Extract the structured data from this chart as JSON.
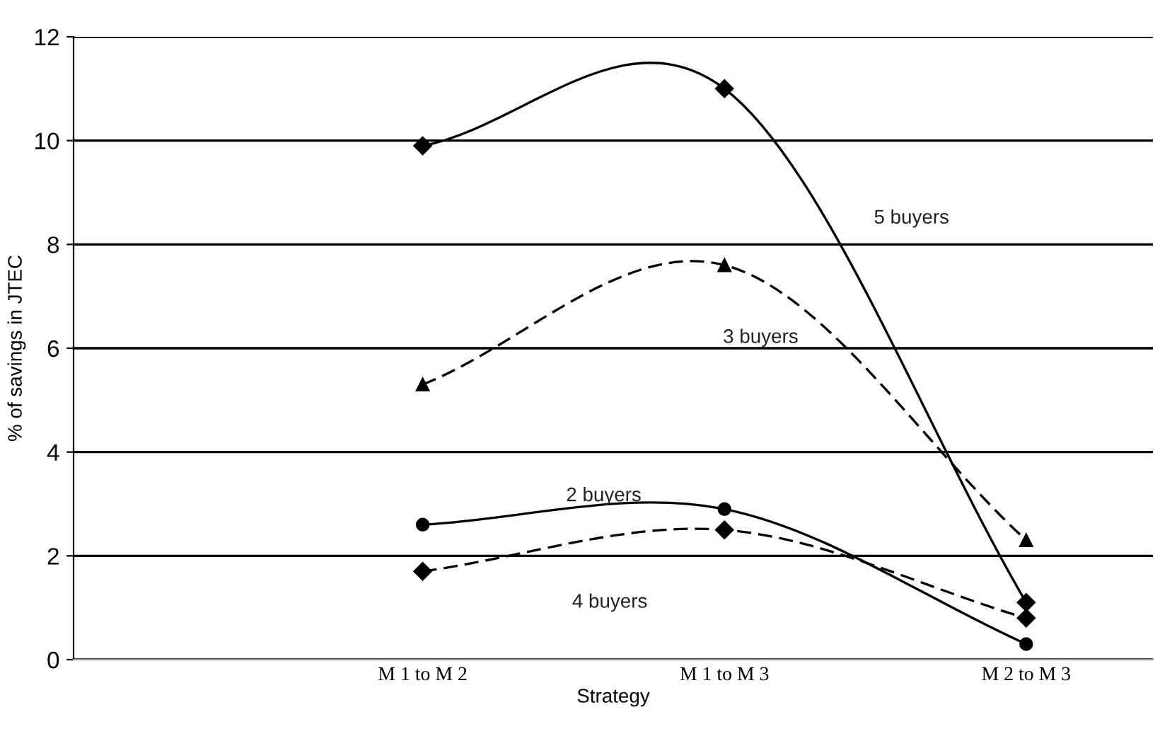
{
  "chart_data": {
    "type": "line",
    "xlabel": "Strategy",
    "ylabel": "% of savings in JTEC",
    "categories": [
      "M 1 to M 2",
      "M 1 to M 3",
      "M 2 to M 3"
    ],
    "series": [
      {
        "name": "5 buyers",
        "color": "#000000",
        "values": [
          9.9,
          11.0,
          1.1
        ],
        "marker": "diamond",
        "line_style": "solid"
      },
      {
        "name": "3 buyers",
        "color": "#000000",
        "values": [
          5.3,
          7.6,
          2.3
        ],
        "marker": "triangle",
        "line_style": "dashed"
      },
      {
        "name": "2 buyers",
        "color": "#000000",
        "values": [
          2.6,
          2.9,
          0.3
        ],
        "marker": "circle",
        "line_style": "solid"
      },
      {
        "name": "4 buyers",
        "color": "#000000",
        "values": [
          1.7,
          2.5,
          0.8
        ],
        "marker": "diamond",
        "line_style": "dashed"
      }
    ],
    "ylim": [
      0,
      12
    ],
    "yticks": [
      0,
      2,
      4,
      6,
      8,
      10,
      12
    ],
    "grid": "y",
    "legend": false
  }
}
